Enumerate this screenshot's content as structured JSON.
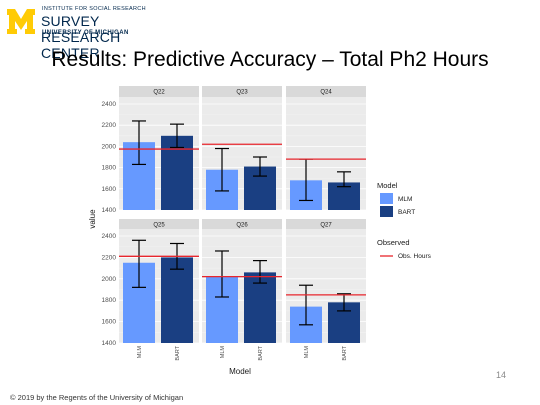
{
  "header": {
    "org_line1": "INSTITUTE FOR SOCIAL RESEARCH",
    "org_line2": "SURVEY RESEARCH CENTER",
    "org_line3": "UNIVERSITY OF MICHIGAN"
  },
  "slide": {
    "title": "Results: Predictive Accuracy – Total Ph2 Hours",
    "page_number": "14",
    "footer": "© 2019 by the Regents of the University of Michigan"
  },
  "colors": {
    "mlm": "#6699ff",
    "bart": "#1a3f82",
    "observed": "#e8262d"
  },
  "chart_data": {
    "type": "bar",
    "xlabel": "Model",
    "ylabel": "value",
    "categories": [
      "MLM",
      "BART"
    ],
    "ylim": [
      1400,
      2400
    ],
    "yticks": [
      "1400",
      "1600",
      "1800",
      "2000",
      "2200",
      "2400"
    ],
    "legend": {
      "model_title": "Model",
      "model_items": [
        "MLM",
        "BART"
      ],
      "observed_title": "Observed",
      "observed_item": "Obs. Hours"
    },
    "panels": [
      {
        "name": "Q22",
        "observed": 1975,
        "series": [
          {
            "name": "MLM",
            "value": 2040,
            "low": 1830,
            "high": 2240
          },
          {
            "name": "BART",
            "value": 2100,
            "low": 1990,
            "high": 2210
          }
        ]
      },
      {
        "name": "Q23",
        "observed": 2020,
        "series": [
          {
            "name": "MLM",
            "value": 1780,
            "low": 1580,
            "high": 1980
          },
          {
            "name": "BART",
            "value": 1810,
            "low": 1720,
            "high": 1900
          }
        ]
      },
      {
        "name": "Q24",
        "observed": 1880,
        "series": [
          {
            "name": "MLM",
            "value": 1680,
            "low": 1490,
            "high": 1880
          },
          {
            "name": "BART",
            "value": 1660,
            "low": 1620,
            "high": 1760
          }
        ]
      },
      {
        "name": "Q25",
        "observed": 2210,
        "series": [
          {
            "name": "MLM",
            "value": 2150,
            "low": 1920,
            "high": 2360
          },
          {
            "name": "BART",
            "value": 2200,
            "low": 2090,
            "high": 2330
          }
        ]
      },
      {
        "name": "Q26",
        "observed": 2020,
        "series": [
          {
            "name": "MLM",
            "value": 2020,
            "low": 1830,
            "high": 2260
          },
          {
            "name": "BART",
            "value": 2060,
            "low": 1960,
            "high": 2170
          }
        ]
      },
      {
        "name": "Q27",
        "observed": 1850,
        "series": [
          {
            "name": "MLM",
            "value": 1740,
            "low": 1570,
            "high": 1940
          },
          {
            "name": "BART",
            "value": 1780,
            "low": 1700,
            "high": 1860
          }
        ]
      }
    ]
  }
}
